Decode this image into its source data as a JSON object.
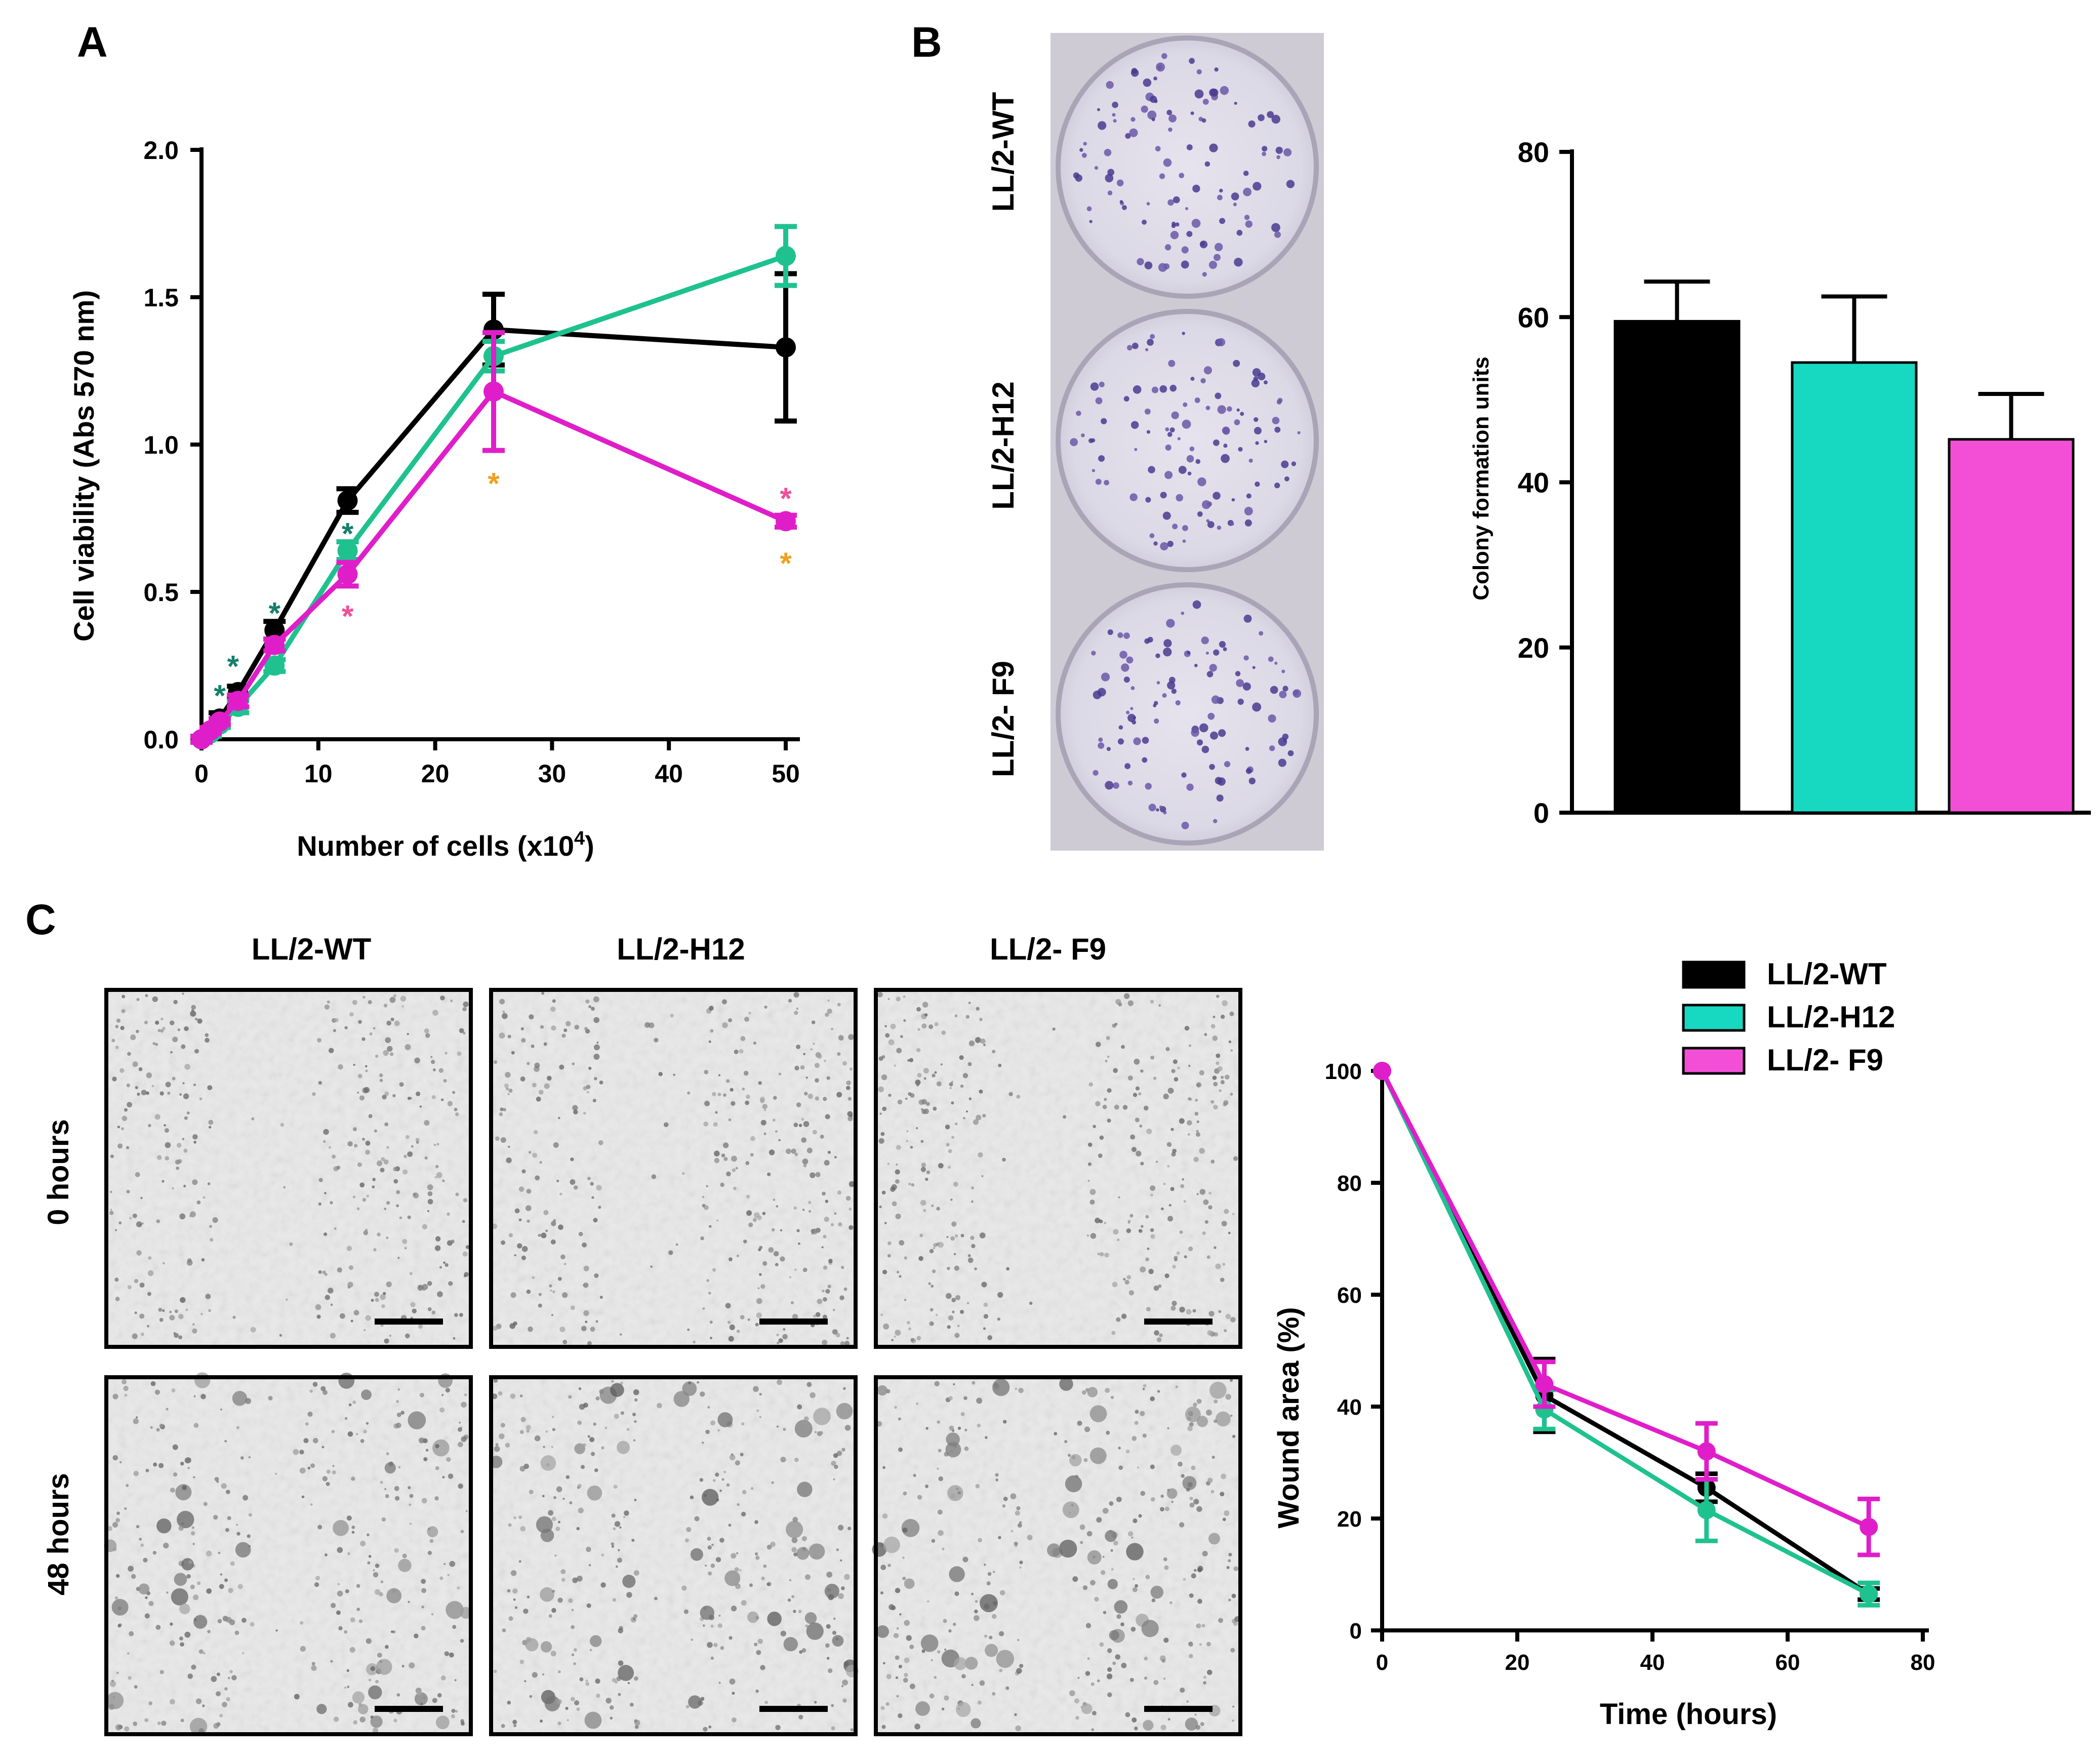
{
  "panel_letters": [
    "A",
    "B",
    "C"
  ],
  "colors": {
    "wt": "#000000",
    "h12": "#1fc28f",
    "h12_bar": "#17d9c2",
    "f9": "#e01ec9",
    "f9_bar": "#f24fd6",
    "star_orange": "#f0a020",
    "star_green": "#12806a",
    "star_pink": "#f0509a"
  },
  "chart_data": [
    {
      "id": "A",
      "type": "line",
      "title": "",
      "xlabel": "Number of cells (x10",
      "xlabel_sup": "4",
      "xlabel_close": ")",
      "ylabel": "Cell viability (Abs 570 nm)",
      "xlim": [
        0,
        50
      ],
      "ylim": [
        0,
        2.0
      ],
      "xticks": [
        0,
        10,
        20,
        30,
        40,
        50
      ],
      "xtick_labels": [
        "0",
        "10",
        "20",
        "30",
        "40",
        "50"
      ],
      "yticks": [
        0,
        0.5,
        1.0,
        1.5,
        2.0
      ],
      "ytick_labels": [
        "0.0",
        "0.5",
        "1.0",
        "1.5",
        "2.0"
      ],
      "series": [
        {
          "name": "LL/2-WT",
          "color": "#000000",
          "x": [
            0,
            0.78,
            1.56,
            3.13,
            6.25,
            12.5,
            25,
            50
          ],
          "y": [
            0.0,
            0.03,
            0.07,
            0.16,
            0.37,
            0.81,
            1.39,
            1.33
          ],
          "err": [
            0.01,
            0.01,
            0.02,
            0.02,
            0.03,
            0.04,
            0.12,
            0.25
          ]
        },
        {
          "name": "LL/2-H12",
          "color": "#1fc28f",
          "x": [
            0,
            0.78,
            1.56,
            3.13,
            6.25,
            12.5,
            25,
            50
          ],
          "y": [
            0.0,
            0.02,
            0.05,
            0.11,
            0.25,
            0.64,
            1.3,
            1.64
          ],
          "err": [
            0.01,
            0.01,
            0.01,
            0.02,
            0.02,
            0.03,
            0.05,
            0.1
          ]
        },
        {
          "name": "LL/2- F9",
          "color": "#e01ec9",
          "x": [
            0,
            0.78,
            1.56,
            3.13,
            6.25,
            12.5,
            25,
            50
          ],
          "y": [
            0.0,
            0.03,
            0.06,
            0.13,
            0.32,
            0.56,
            1.18,
            0.74
          ],
          "err": [
            0.01,
            0.01,
            0.01,
            0.02,
            0.02,
            0.04,
            0.2,
            0.02
          ]
        }
      ],
      "annotations": [
        {
          "text": "*",
          "x": 1.56,
          "y": 0.15,
          "color": "#12806a"
        },
        {
          "text": "*",
          "x": 2.7,
          "y": 0.25,
          "color": "#12806a"
        },
        {
          "text": "*",
          "x": 6.25,
          "y": 0.43,
          "color": "#12806a"
        },
        {
          "text": "*",
          "x": 12.5,
          "y": 0.7,
          "color": "#12806a"
        },
        {
          "text": "*",
          "x": 12.5,
          "y": 0.42,
          "color": "#f0509a"
        },
        {
          "text": "*",
          "x": 25,
          "y": 0.87,
          "color": "#f0a020"
        },
        {
          "text": "*",
          "x": 50,
          "y": 0.82,
          "color": "#f0509a"
        },
        {
          "text": "*",
          "x": 50,
          "y": 0.6,
          "color": "#f0a020"
        }
      ]
    },
    {
      "id": "B",
      "type": "bar",
      "title": "",
      "xlabel": "",
      "ylabel": "Colony formation units",
      "ylim": [
        0,
        80
      ],
      "yticks": [
        0,
        20,
        40,
        60,
        80
      ],
      "ytick_labels": [
        "0",
        "20",
        "40",
        "60",
        "80"
      ],
      "categories": [
        "LL/2-WT",
        "LL/2-H12",
        "LL/2- F9"
      ],
      "values": [
        59.5,
        54.5,
        45.2
      ],
      "err": [
        4.8,
        8.0,
        5.5
      ],
      "colors": [
        "#000000",
        "#17d9c2",
        "#f24fd6"
      ]
    },
    {
      "id": "C",
      "type": "line",
      "title": "",
      "xlabel": "Time (hours)",
      "ylabel": "Wound area (%)",
      "xlim": [
        0,
        80
      ],
      "ylim": [
        0,
        100
      ],
      "xticks": [
        0,
        20,
        40,
        60,
        80
      ],
      "xtick_labels": [
        "0",
        "20",
        "40",
        "60",
        "80"
      ],
      "yticks": [
        0,
        20,
        40,
        60,
        80,
        100
      ],
      "ytick_labels": [
        "0",
        "20",
        "40",
        "60",
        "80",
        "100"
      ],
      "series": [
        {
          "name": "LL/2-WT",
          "color": "#000000",
          "x": [
            0,
            24,
            48,
            72
          ],
          "y": [
            100,
            42,
            25.5,
            6.5
          ],
          "err": [
            0,
            6.5,
            2.5,
            1.0
          ]
        },
        {
          "name": "LL/2-H12",
          "color": "#1fc28f",
          "x": [
            0,
            24,
            48,
            72
          ],
          "y": [
            100,
            39.5,
            21.5,
            6.5
          ],
          "err": [
            0,
            3.5,
            5.5,
            2.0
          ]
        },
        {
          "name": "LL/2- F9",
          "color": "#e01ec9",
          "x": [
            0,
            24,
            48,
            72
          ],
          "y": [
            100,
            44,
            32,
            18.5
          ],
          "err": [
            0,
            4.0,
            5.0,
            5.0
          ]
        }
      ],
      "legend": {
        "placement": "top-right",
        "entries": [
          {
            "label": "LL/2-WT",
            "fill": "#000000"
          },
          {
            "label": "LL/2-H12",
            "fill": "#17d9c2"
          },
          {
            "label": "LL/2- F9",
            "fill": "#f24fd6"
          }
        ]
      }
    }
  ],
  "plates": {
    "labels": [
      "LL/2-WT",
      "LL/2-H12",
      "LL/2- F9"
    ]
  },
  "micrographs": {
    "column_labels": [
      "LL/2-WT",
      "LL/2-H12",
      "LL/2- F9"
    ],
    "row_labels": [
      "0 hours",
      "48 hours"
    ]
  }
}
